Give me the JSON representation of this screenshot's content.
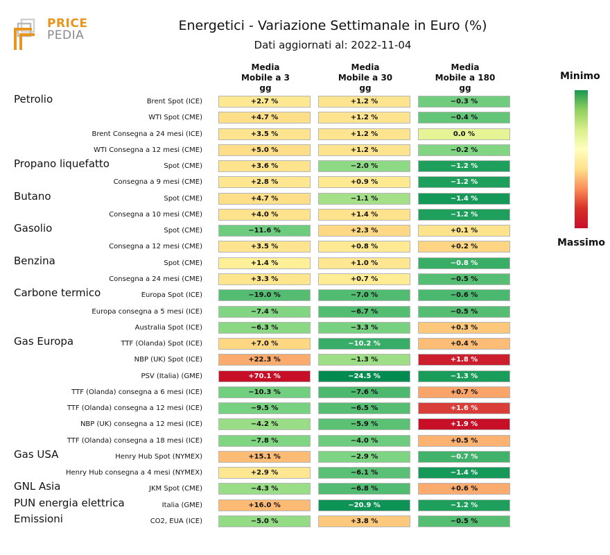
{
  "logo": {
    "line1": "PRICE",
    "line2": "PEDIA",
    "accent": "#e8951e"
  },
  "chart_data": {
    "type": "table",
    "title": "Energetici - Variazione Settimanale in Euro (%)",
    "subtitle": "Dati aggiornati al: 2022-11-04",
    "columns": [
      {
        "line1": "Media",
        "line2": "Mobile a 3",
        "line3": "gg"
      },
      {
        "line1": "Media",
        "line2": "Mobile a 30",
        "line3": "gg"
      },
      {
        "line1": "Media",
        "line2": "Mobile a 180",
        "line3": "gg"
      }
    ],
    "legend": {
      "min_label": "Minimo",
      "max_label": "Massimo"
    },
    "categories": [
      {
        "name": "Petrolio",
        "row": 0
      },
      {
        "name": "Propano liquefatto",
        "row": 4
      },
      {
        "name": "Butano",
        "row": 6
      },
      {
        "name": "Gasolio",
        "row": 8
      },
      {
        "name": "Benzina",
        "row": 10
      },
      {
        "name": "Carbone termico",
        "row": 12
      },
      {
        "name": "Gas Europa",
        "row": 15
      },
      {
        "name": "Gas USA",
        "row": 22
      },
      {
        "name": "GNL Asia",
        "row": 24
      },
      {
        "name": "PUN energia elettrica",
        "row": 25
      },
      {
        "name": "Emissioni",
        "row": 26
      }
    ],
    "rows": [
      {
        "label": "Brent Spot (ICE)",
        "values": [
          2.7,
          1.2,
          -0.3
        ],
        "text": [
          "+2.7 %",
          "+1.2 %",
          "−0.3 %"
        ]
      },
      {
        "label": "WTI Spot (CME)",
        "values": [
          4.7,
          1.2,
          -0.4
        ],
        "text": [
          "+4.7 %",
          "+1.2 %",
          "−0.4 %"
        ]
      },
      {
        "label": "Brent Consegna a 24 mesi (ICE)",
        "values": [
          3.5,
          1.2,
          0.0
        ],
        "text": [
          "+3.5 %",
          "+1.2 %",
          "0.0 %"
        ]
      },
      {
        "label": "WTI Consegna a 12 mesi (CME)",
        "values": [
          5.0,
          1.2,
          -0.2
        ],
        "text": [
          "+5.0 %",
          "+1.2 %",
          "−0.2 %"
        ]
      },
      {
        "label": "Spot (CME)",
        "values": [
          3.6,
          -2.0,
          -1.2
        ],
        "text": [
          "+3.6 %",
          "−2.0 %",
          "−1.2 %"
        ]
      },
      {
        "label": "Consegna a 9 mesi (CME)",
        "values": [
          2.8,
          0.9,
          -1.2
        ],
        "text": [
          "+2.8 %",
          "+0.9 %",
          "−1.2 %"
        ]
      },
      {
        "label": "Spot (CME)",
        "values": [
          4.7,
          -1.1,
          -1.4
        ],
        "text": [
          "+4.7 %",
          "−1.1 %",
          "−1.4 %"
        ]
      },
      {
        "label": "Consegna a 10 mesi (CME)",
        "values": [
          4.0,
          1.4,
          -1.2
        ],
        "text": [
          "+4.0 %",
          "+1.4 %",
          "−1.2 %"
        ]
      },
      {
        "label": "Spot (CME)",
        "values": [
          -11.6,
          2.3,
          0.1
        ],
        "text": [
          "−11.6 %",
          "+2.3 %",
          "+0.1 %"
        ]
      },
      {
        "label": "Consegna a 12 mesi (CME)",
        "values": [
          3.5,
          0.8,
          0.2
        ],
        "text": [
          "+3.5 %",
          "+0.8 %",
          "+0.2 %"
        ]
      },
      {
        "label": "Spot (CME)",
        "values": [
          1.4,
          1.0,
          -0.8
        ],
        "text": [
          "+1.4 %",
          "+1.0 %",
          "−0.8 %"
        ]
      },
      {
        "label": "Consegna a 24 mesi (CME)",
        "values": [
          3.3,
          0.7,
          -0.5
        ],
        "text": [
          "+3.3 %",
          "+0.7 %",
          "−0.5 %"
        ]
      },
      {
        "label": "Europa Spot (ICE)",
        "values": [
          -19.0,
          -7.0,
          -0.6
        ],
        "text": [
          "−19.0 %",
          "−7.0 %",
          "−0.6 %"
        ]
      },
      {
        "label": "Europa consegna a 5 mesi (ICE)",
        "values": [
          -7.4,
          -6.7,
          -0.5
        ],
        "text": [
          "−7.4 %",
          "−6.7 %",
          "−0.5 %"
        ]
      },
      {
        "label": "Australia Spot (ICE)",
        "values": [
          -6.3,
          -3.3,
          0.3
        ],
        "text": [
          "−6.3 %",
          "−3.3 %",
          "+0.3 %"
        ]
      },
      {
        "label": "TTF (Olanda) Spot (ICE)",
        "values": [
          7.0,
          -10.2,
          0.4
        ],
        "text": [
          "+7.0 %",
          "−10.2 %",
          "+0.4 %"
        ]
      },
      {
        "label": "NBP (UK) Spot (ICE)",
        "values": [
          22.3,
          -1.3,
          1.8
        ],
        "text": [
          "+22.3 %",
          "−1.3 %",
          "+1.8 %"
        ]
      },
      {
        "label": "PSV (Italia) (GME)",
        "values": [
          70.1,
          -24.5,
          -1.3
        ],
        "text": [
          "+70.1 %",
          "−24.5 %",
          "−1.3 %"
        ]
      },
      {
        "label": "TTF (Olanda) consegna a 6 mesi (ICE)",
        "values": [
          -10.3,
          -7.6,
          0.7
        ],
        "text": [
          "−10.3 %",
          "−7.6 %",
          "+0.7 %"
        ]
      },
      {
        "label": "TTF (Olanda) consegna a 12 mesi (ICE)",
        "values": [
          -9.5,
          -6.5,
          1.6
        ],
        "text": [
          "−9.5 %",
          "−6.5 %",
          "+1.6 %"
        ]
      },
      {
        "label": "NBP (UK) consegna a 12 mesi (ICE)",
        "values": [
          -4.2,
          -5.9,
          1.9
        ],
        "text": [
          "−4.2 %",
          "−5.9 %",
          "+1.9 %"
        ]
      },
      {
        "label": "TTF (Olanda) consegna a 18 mesi (ICE)",
        "values": [
          -7.8,
          -4.0,
          0.5
        ],
        "text": [
          "−7.8 %",
          "−4.0 %",
          "+0.5 %"
        ]
      },
      {
        "label": "Henry Hub Spot (NYMEX)",
        "values": [
          15.1,
          -2.9,
          -0.7
        ],
        "text": [
          "+15.1 %",
          "−2.9 %",
          "−0.7 %"
        ]
      },
      {
        "label": "Henry Hub consegna a 4 mesi (NYMEX)",
        "values": [
          2.9,
          -6.1,
          -1.4
        ],
        "text": [
          "+2.9 %",
          "−6.1 %",
          "−1.4 %"
        ]
      },
      {
        "label": "JKM Spot (CME)",
        "values": [
          -4.3,
          -6.8,
          0.6
        ],
        "text": [
          "−4.3 %",
          "−6.8 %",
          "+0.6 %"
        ]
      },
      {
        "label": "Italia (GME)",
        "values": [
          16.0,
          -20.9,
          -1.2
        ],
        "text": [
          "+16.0 %",
          "−20.9 %",
          "−1.2 %"
        ]
      },
      {
        "label": "CO2, EUA (ICE)",
        "values": [
          -5.0,
          3.8,
          -0.5
        ],
        "text": [
          "−5.0 %",
          "+3.8 %",
          "−0.5 %"
        ]
      }
    ]
  }
}
